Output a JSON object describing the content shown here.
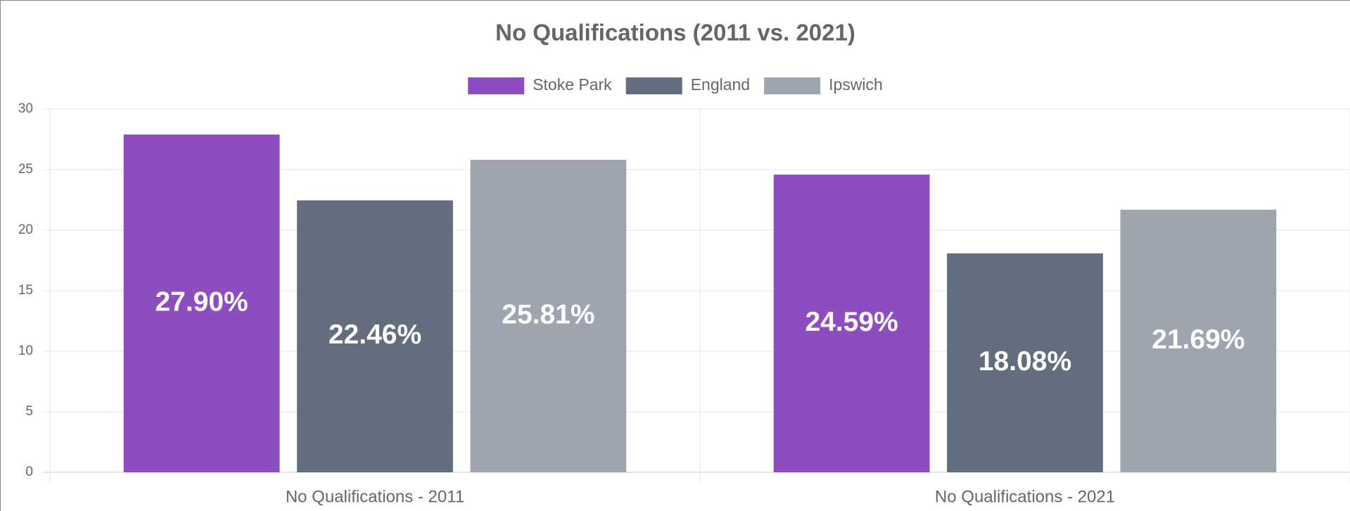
{
  "chart_data": {
    "type": "bar",
    "title": "No Qualifications (2011 vs. 2021)",
    "categories": [
      "No Qualifications - 2011",
      "No Qualifications - 2021"
    ],
    "series": [
      {
        "name": "Stoke Park",
        "color": "#8e4dbf",
        "values": [
          27.9,
          24.59
        ],
        "value_labels": [
          "27.90%",
          "24.59%"
        ]
      },
      {
        "name": "England",
        "color": "#626d7e",
        "values": [
          22.46,
          18.08
        ],
        "value_labels": [
          "22.46%",
          "18.08%"
        ]
      },
      {
        "name": "Ipswich",
        "color": "#9ea5b1",
        "values": [
          25.81,
          21.69
        ],
        "value_labels": [
          "25.81%",
          "21.69%"
        ]
      }
    ],
    "ylim": [
      0,
      30
    ],
    "yticks": [
      0,
      5,
      10,
      15,
      20,
      25,
      30
    ],
    "grid": true,
    "legend": "top"
  }
}
